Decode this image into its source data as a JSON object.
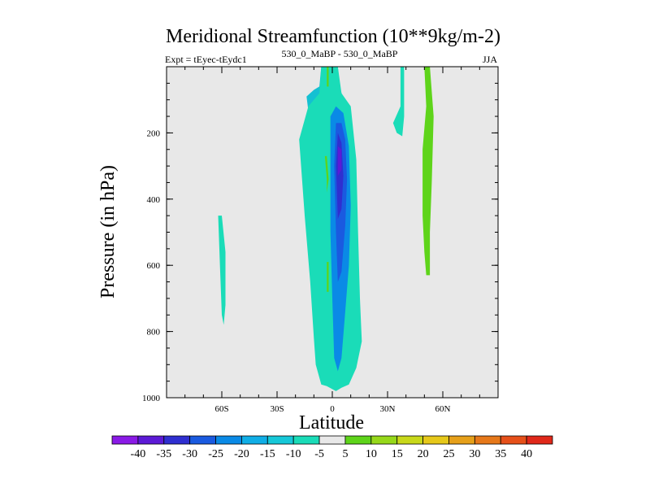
{
  "chart_data": {
    "type": "heatmap",
    "title": "Meridional Streamfunction (10**9kg/m-2)",
    "subtitle_left": "Expt = tEyec-tEydc1",
    "subtitle_center": "530_0_MaBP - 530_0_MaBP",
    "subtitle_right": "JJA",
    "xlabel": "Latitude",
    "ylabel": "Pressure (in hPa)",
    "xlim": [
      -90,
      90
    ],
    "ylim": [
      1000,
      0
    ],
    "x_ticks": [
      {
        "value": -60,
        "label": "60S"
      },
      {
        "value": -30,
        "label": "30S"
      },
      {
        "value": 0,
        "label": "0"
      },
      {
        "value": 30,
        "label": "30N"
      },
      {
        "value": 60,
        "label": "60N"
      }
    ],
    "y_ticks": [
      {
        "value": 200,
        "label": "200"
      },
      {
        "value": 400,
        "label": "400"
      },
      {
        "value": 600,
        "label": "600"
      },
      {
        "value": 800,
        "label": "800"
      },
      {
        "value": 1000,
        "label": "1000"
      }
    ],
    "colorbar": {
      "labels": [
        "-40",
        "-35",
        "-30",
        "-25",
        "-20",
        "-15",
        "-10",
        "-5",
        "5",
        "10",
        "15",
        "20",
        "25",
        "30",
        "35",
        "40"
      ],
      "colors": [
        "#8a1ae6",
        "#5c1ad6",
        "#2f2fd0",
        "#1a5ae0",
        "#0a8ae6",
        "#10aee6",
        "#16c8d8",
        "#1adcb8",
        "#e8e8e8",
        "#5ed41a",
        "#96d81a",
        "#c8d81a",
        "#e6c81a",
        "#e6a01a",
        "#e6781a",
        "#e6501a",
        "#e0281a"
      ]
    },
    "contours": [
      {
        "level": "-10",
        "color": "#14c0d2",
        "points": [
          [
            -14,
            90
          ],
          [
            -12,
            180
          ],
          [
            -11,
            320
          ],
          [
            -9,
            470
          ],
          [
            -8,
            620
          ],
          [
            -7,
            800
          ],
          [
            -5,
            930
          ],
          [
            -3,
            960
          ],
          [
            0,
            960
          ],
          [
            3,
            950
          ],
          [
            6,
            880
          ],
          [
            9,
            760
          ],
          [
            11,
            620
          ],
          [
            10,
            440
          ],
          [
            9,
            250
          ],
          [
            7,
            120
          ],
          [
            4,
            60
          ],
          [
            3,
            0
          ],
          [
            -6,
            0
          ],
          [
            -7,
            60
          ],
          [
            -10,
            70
          ],
          [
            -14,
            90
          ]
        ]
      },
      {
        "level": "-5",
        "color": "#1adcb8",
        "points": [
          [
            -13,
            120
          ],
          [
            -18,
            220
          ],
          [
            -15,
            450
          ],
          [
            -12,
            650
          ],
          [
            -10,
            820
          ],
          [
            -9,
            900
          ],
          [
            -6,
            960
          ],
          [
            -3,
            965
          ],
          [
            2,
            980
          ],
          [
            5,
            970
          ],
          [
            9,
            960
          ],
          [
            13,
            910
          ],
          [
            16,
            830
          ],
          [
            15,
            700
          ],
          [
            14,
            500
          ],
          [
            13,
            280
          ],
          [
            10,
            120
          ],
          [
            5,
            80
          ],
          [
            3,
            0
          ],
          [
            -6,
            0
          ],
          [
            -7,
            80
          ],
          [
            -13,
            120
          ]
        ]
      },
      {
        "level": "-15",
        "color": "#0a8ae6",
        "points": [
          [
            -1,
            150
          ],
          [
            -1,
            300
          ],
          [
            -1,
            500
          ],
          [
            0,
            700
          ],
          [
            1,
            880
          ],
          [
            3,
            920
          ],
          [
            5,
            880
          ],
          [
            7,
            740
          ],
          [
            9,
            600
          ],
          [
            10,
            420
          ],
          [
            9,
            240
          ],
          [
            6,
            140
          ],
          [
            2,
            120
          ],
          [
            -1,
            150
          ]
        ]
      },
      {
        "level": "-20",
        "color": "#1a5ae0",
        "points": [
          [
            2,
            170
          ],
          [
            1,
            300
          ],
          [
            2,
            500
          ],
          [
            3,
            650
          ],
          [
            5,
            620
          ],
          [
            7,
            480
          ],
          [
            8,
            340
          ],
          [
            7,
            220
          ],
          [
            5,
            170
          ],
          [
            2,
            170
          ]
        ]
      },
      {
        "level": "-25",
        "color": "#2f2fd0",
        "points": [
          [
            3,
            200
          ],
          [
            2,
            300
          ],
          [
            3,
            460
          ],
          [
            5,
            430
          ],
          [
            6,
            330
          ],
          [
            5,
            230
          ],
          [
            3,
            200
          ]
        ]
      },
      {
        "level": "-30",
        "color": "#5c1ad6",
        "points": [
          [
            3,
            240
          ],
          [
            3,
            330
          ],
          [
            5,
            310
          ],
          [
            5,
            250
          ],
          [
            3,
            240
          ]
        ]
      },
      {
        "level": "-5",
        "color": "#1adcb8",
        "points": [
          [
            -62,
            450
          ],
          [
            -61,
            600
          ],
          [
            -60,
            750
          ],
          [
            -59,
            780
          ],
          [
            -58,
            720
          ],
          [
            -58,
            560
          ],
          [
            -60,
            450
          ],
          [
            -62,
            450
          ]
        ]
      },
      {
        "level": "-5",
        "color": "#1adcb8",
        "points": [
          [
            37,
            0
          ],
          [
            37,
            120
          ],
          [
            33,
            170
          ],
          [
            35,
            200
          ],
          [
            38,
            210
          ],
          [
            39,
            150
          ],
          [
            39,
            0
          ],
          [
            37,
            0
          ]
        ]
      },
      {
        "level": "5",
        "color": "#5ed41a",
        "points": [
          [
            -4,
            270
          ],
          [
            -3,
            340
          ],
          [
            -3,
            380
          ],
          [
            -2,
            340
          ],
          [
            -3,
            270
          ],
          [
            -4,
            270
          ]
        ]
      },
      {
        "level": "5",
        "color": "#5ed41a",
        "points": [
          [
            -3,
            590
          ],
          [
            -3,
            680
          ],
          [
            -2,
            680
          ],
          [
            -2,
            590
          ],
          [
            -3,
            590
          ]
        ]
      },
      {
        "level": "5",
        "color": "#5ed41a",
        "points": [
          [
            -3,
            0
          ],
          [
            -3,
            60
          ],
          [
            -2,
            60
          ],
          [
            -2,
            0
          ],
          [
            -3,
            0
          ]
        ]
      },
      {
        "level": "5",
        "color": "#5ed41a",
        "points": [
          [
            50,
            0
          ],
          [
            51,
            120
          ],
          [
            49,
            250
          ],
          [
            49,
            450
          ],
          [
            50,
            560
          ],
          [
            51,
            630
          ],
          [
            53,
            630
          ],
          [
            53,
            500
          ],
          [
            54,
            350
          ],
          [
            55,
            150
          ],
          [
            53,
            0
          ],
          [
            50,
            0
          ]
        ]
      }
    ]
  }
}
